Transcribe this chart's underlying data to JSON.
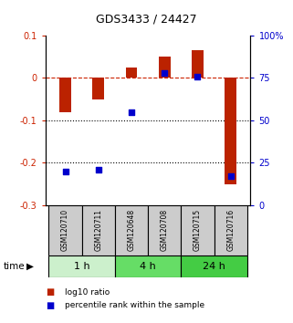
{
  "title": "GDS3433 / 24427",
  "categories": [
    "GSM120710",
    "GSM120711",
    "GSM120648",
    "GSM120708",
    "GSM120715",
    "GSM120716"
  ],
  "red_values": [
    -0.08,
    -0.05,
    0.025,
    0.05,
    0.065,
    -0.25
  ],
  "blue_percentiles": [
    20,
    21,
    55,
    78,
    76,
    17
  ],
  "time_groups": [
    {
      "label": "1 h",
      "start": 0,
      "end": 2,
      "color": "#ccf0cc"
    },
    {
      "label": "4 h",
      "start": 2,
      "end": 4,
      "color": "#66dd66"
    },
    {
      "label": "24 h",
      "start": 4,
      "end": 6,
      "color": "#44cc44"
    }
  ],
  "ylim_left": [
    -0.3,
    0.1
  ],
  "ylim_right": [
    0,
    100
  ],
  "bar_color": "#bb2200",
  "square_color": "#0000cc",
  "bar_width": 0.35,
  "dashed_line_color": "#cc2200",
  "dotted_line_values": [
    -0.1,
    -0.2
  ],
  "left_tick_color": "#cc2200",
  "right_tick_color": "#0000cc",
  "left_tick_labels": [
    "0.1",
    "0",
    "-0.1",
    "-0.2",
    "-0.3"
  ],
  "left_tick_positions": [
    0.1,
    0.0,
    -0.1,
    -0.2,
    -0.3
  ],
  "right_tick_labels": [
    "100%",
    "75",
    "50",
    "25",
    "0"
  ],
  "right_tick_positions": [
    100,
    75,
    50,
    25,
    0
  ],
  "legend_red": "log10 ratio",
  "legend_blue": "percentile rank within the sample",
  "xlabel_time": "time",
  "square_size": 25,
  "sample_box_color": "#cccccc",
  "label_fontsize": 5.5,
  "tick_fontsize": 7,
  "title_fontsize": 9
}
